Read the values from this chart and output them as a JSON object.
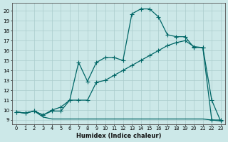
{
  "background_color": "#cce8e8",
  "grid_color": "#aacccc",
  "line_color": "#006666",
  "xlabel": "Humidex (Indice chaleur)",
  "xlim_min": -0.5,
  "xlim_max": 23.5,
  "ylim_min": 8.6,
  "ylim_max": 20.8,
  "line1_x": [
    0,
    1,
    2,
    3,
    4,
    5,
    6,
    7,
    8,
    9,
    10,
    11,
    12,
    13,
    14,
    15,
    16,
    17,
    18,
    19,
    20,
    21,
    22,
    23
  ],
  "line1_y": [
    9.8,
    9.7,
    9.9,
    9.5,
    10.0,
    10.3,
    11.0,
    14.8,
    12.9,
    14.8,
    15.3,
    15.3,
    15.0,
    19.7,
    20.2,
    20.2,
    19.4,
    17.6,
    17.4,
    17.4,
    16.3,
    16.3,
    11.0,
    8.9
  ],
  "line2_x": [
    0,
    1,
    2,
    3,
    4,
    5,
    6,
    7,
    8,
    9,
    10,
    11,
    12,
    13,
    14,
    15,
    16,
    17,
    18,
    19,
    20,
    21,
    22,
    23
  ],
  "line2_y": [
    9.8,
    9.7,
    9.9,
    9.5,
    9.9,
    9.9,
    11.0,
    11.0,
    11.0,
    12.8,
    13.0,
    13.5,
    14.0,
    14.5,
    15.0,
    15.5,
    16.0,
    16.5,
    16.8,
    17.0,
    16.4,
    16.3,
    9.0,
    9.0
  ],
  "line3_x": [
    0,
    1,
    2,
    3,
    4,
    5,
    6,
    7,
    8,
    9,
    10,
    11,
    12,
    13,
    14,
    15,
    16,
    17,
    18,
    19,
    20,
    21,
    22,
    23
  ],
  "line3_y": [
    9.8,
    9.7,
    9.9,
    9.3,
    9.1,
    9.1,
    9.1,
    9.1,
    9.1,
    9.1,
    9.1,
    9.1,
    9.1,
    9.1,
    9.1,
    9.1,
    9.1,
    9.1,
    9.1,
    9.1,
    9.1,
    9.1,
    9.0,
    8.9
  ],
  "lw": 0.9,
  "ms": 2.0
}
